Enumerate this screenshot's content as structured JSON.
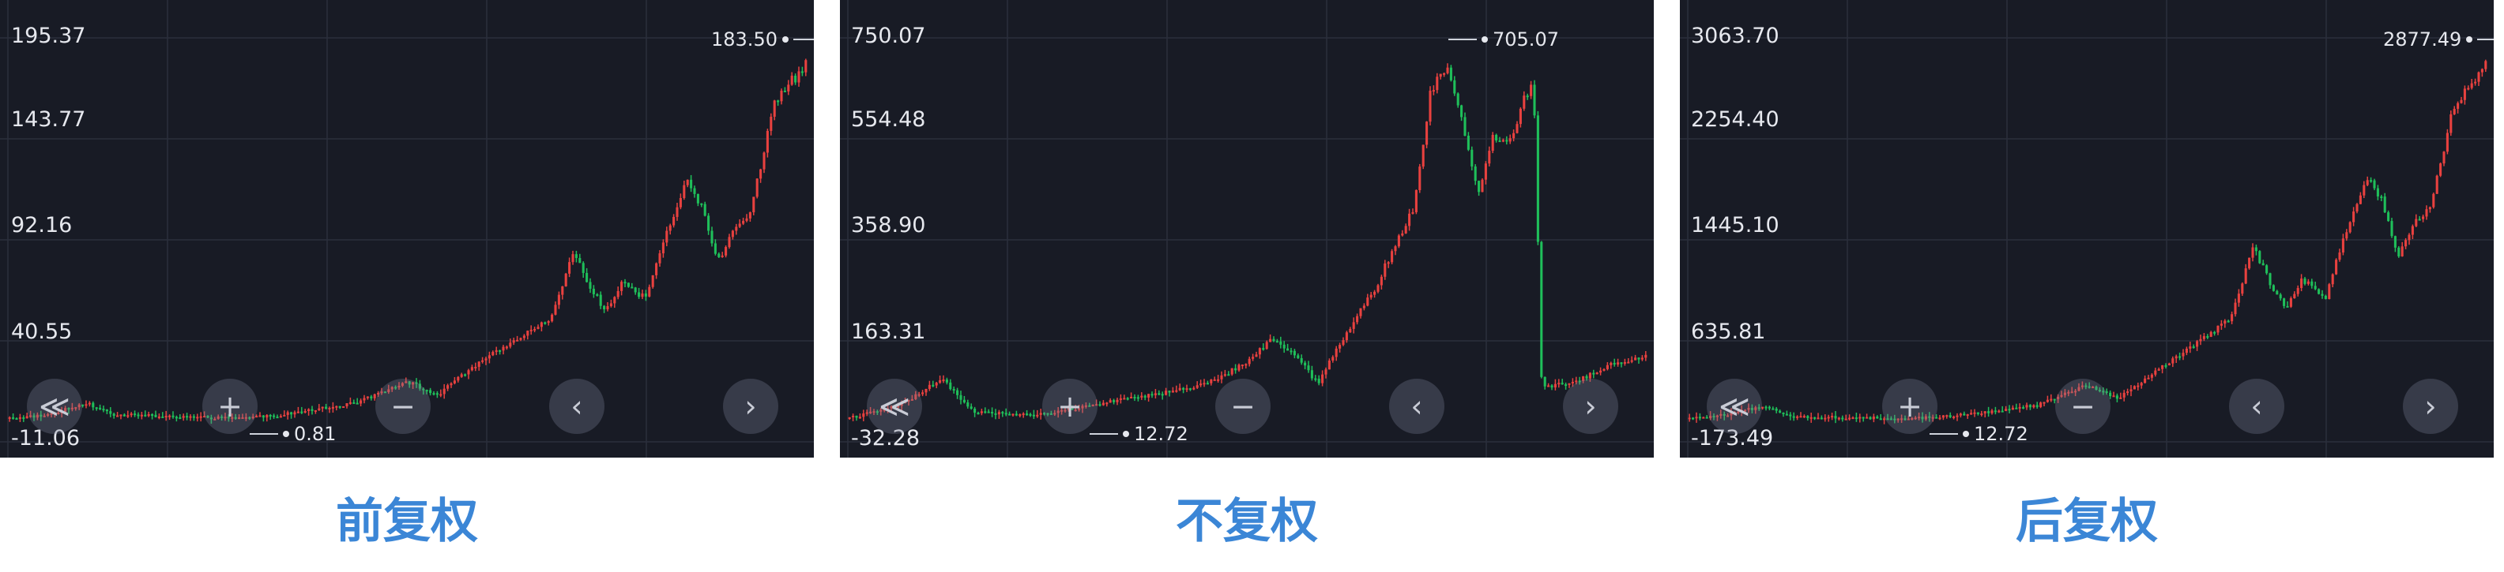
{
  "chart_data": [
    {
      "type": "candlestick",
      "caption": "前复权",
      "y_ticks": [
        "195.37",
        "143.77",
        "92.16",
        "40.55",
        "-11.06"
      ],
      "ylim": [
        -11.06,
        195.37
      ],
      "high_label": "183.50",
      "low_label": "0.81",
      "series_up_color": "#e8413f",
      "series_down_color": "#1fbf5a",
      "close_path": [
        [
          0,
          1.0
        ],
        [
          0.05,
          2.5
        ],
        [
          0.1,
          9.0
        ],
        [
          0.13,
          3.0
        ],
        [
          0.2,
          2.0
        ],
        [
          0.28,
          1.0
        ],
        [
          0.33,
          2.0
        ],
        [
          0.38,
          5.0
        ],
        [
          0.44,
          9.0
        ],
        [
          0.5,
          20.0
        ],
        [
          0.54,
          13.0
        ],
        [
          0.58,
          26.0
        ],
        [
          0.64,
          42.0
        ],
        [
          0.68,
          52.0
        ],
        [
          0.71,
          86.0
        ],
        [
          0.73,
          68.0
        ],
        [
          0.75,
          56.0
        ],
        [
          0.77,
          70.0
        ],
        [
          0.8,
          62.0
        ],
        [
          0.82,
          90.0
        ],
        [
          0.85,
          122.0
        ],
        [
          0.87,
          110.0
        ],
        [
          0.89,
          82.0
        ],
        [
          0.91,
          96.0
        ],
        [
          0.93,
          106.0
        ],
        [
          0.96,
          160.0
        ],
        [
          1.0,
          183.0
        ]
      ]
    },
    {
      "type": "candlestick",
      "caption": "不复权",
      "y_ticks": [
        "750.07",
        "554.48",
        "358.90",
        "163.31",
        "-32.28"
      ],
      "ylim": [
        -32.28,
        750.07
      ],
      "high_label": "705.07",
      "low_label": "12.72",
      "series_up_color": "#e8413f",
      "series_down_color": "#1fbf5a",
      "close_path": [
        [
          0,
          12.0
        ],
        [
          0.07,
          40.0
        ],
        [
          0.12,
          90.0
        ],
        [
          0.16,
          25.0
        ],
        [
          0.24,
          20.0
        ],
        [
          0.33,
          45.0
        ],
        [
          0.39,
          60.0
        ],
        [
          0.45,
          80.0
        ],
        [
          0.5,
          120.0
        ],
        [
          0.53,
          165.0
        ],
        [
          0.56,
          140.0
        ],
        [
          0.59,
          80.0
        ],
        [
          0.62,
          165.0
        ],
        [
          0.66,
          260.0
        ],
        [
          0.69,
          360.0
        ],
        [
          0.71,
          420.0
        ],
        [
          0.73,
          640.0
        ],
        [
          0.75,
          700.0
        ],
        [
          0.77,
          600.0
        ],
        [
          0.79,
          450.0
        ],
        [
          0.81,
          560.0
        ],
        [
          0.83,
          550.0
        ],
        [
          0.85,
          640.0
        ],
        [
          0.86,
          660.0
        ],
        [
          0.87,
          70.0
        ],
        [
          0.92,
          90.0
        ],
        [
          0.96,
          120.0
        ],
        [
          1.0,
          135.0
        ]
      ]
    },
    {
      "type": "candlestick",
      "caption": "后复权",
      "y_ticks": [
        "3063.70",
        "2254.40",
        "1445.10",
        "635.81",
        "-173.49"
      ],
      "ylim": [
        -173.49,
        3063.7
      ],
      "high_label": "2877.49",
      "low_label": "12.72",
      "series_up_color": "#e8413f",
      "series_down_color": "#1fbf5a",
      "close_path": [
        [
          0,
          10.0
        ],
        [
          0.05,
          40.0
        ],
        [
          0.1,
          120.0
        ],
        [
          0.13,
          30.0
        ],
        [
          0.2,
          20.0
        ],
        [
          0.28,
          15.0
        ],
        [
          0.33,
          30.0
        ],
        [
          0.38,
          70.0
        ],
        [
          0.44,
          120.0
        ],
        [
          0.5,
          280.0
        ],
        [
          0.54,
          170.0
        ],
        [
          0.58,
          360.0
        ],
        [
          0.64,
          620.0
        ],
        [
          0.68,
          820.0
        ],
        [
          0.71,
          1380.0
        ],
        [
          0.73,
          1100.0
        ],
        [
          0.75,
          880.0
        ],
        [
          0.77,
          1130.0
        ],
        [
          0.8,
          980.0
        ],
        [
          0.82,
          1420.0
        ],
        [
          0.85,
          1950.0
        ],
        [
          0.87,
          1760.0
        ],
        [
          0.89,
          1310.0
        ],
        [
          0.91,
          1560.0
        ],
        [
          0.93,
          1700.0
        ],
        [
          0.96,
          2500.0
        ],
        [
          1.0,
          2870.0
        ]
      ]
    }
  ],
  "controls": {
    "fast_back": "≪",
    "zoom_in": "+",
    "zoom_out": "−",
    "prev": "‹",
    "next": "›"
  }
}
